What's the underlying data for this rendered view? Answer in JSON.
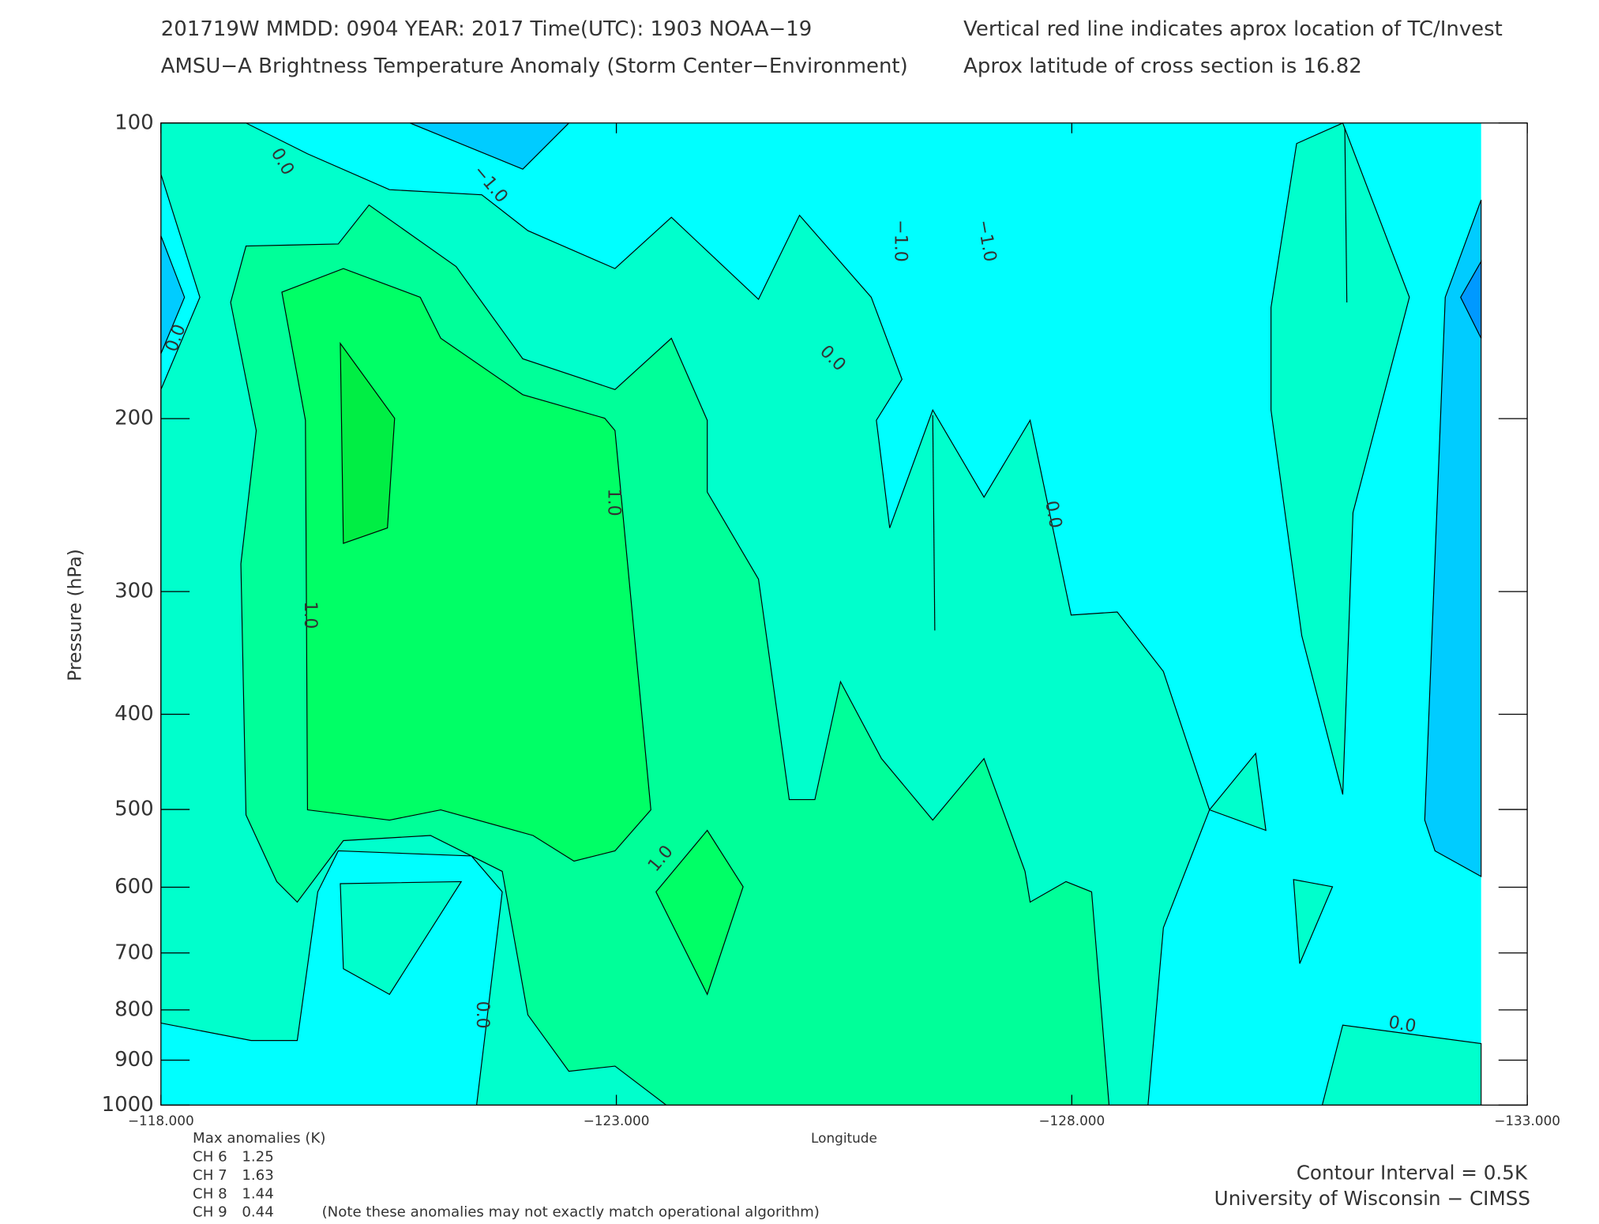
{
  "chart_data": {
    "type": "contour",
    "title_lines": [
      "201719W  MMDD: 0904 YEAR: 2017 Time(UTC): 1903 NOAA−19",
      "AMSU−A Brightness Temperature Anomaly (Storm Center−Environment)"
    ],
    "notes": [
      "Vertical red line indicates aprox location of TC/Invest",
      "Aprox latitude of cross section is 16.82"
    ],
    "x_label": "Longitude",
    "y_label": "Pressure (hPa)",
    "xlim": [
      -118,
      -133
    ],
    "xticks": [
      {
        "value": -118,
        "label": "−118.000"
      },
      {
        "value": -123,
        "label": "−123.000"
      },
      {
        "value": -128,
        "label": "−128.000"
      },
      {
        "value": -133,
        "label": "−133.000"
      }
    ],
    "ylim": [
      1000,
      100
    ],
    "yticks": [
      100,
      200,
      300,
      400,
      500,
      600,
      700,
      800,
      900,
      1000
    ],
    "log_scale_y": true,
    "contour_labels": [
      "0.0",
      "−1.0",
      "0.0",
      "−1.0",
      "−1.0",
      "0.0",
      "1.0",
      "0.0",
      "1.0",
      "1.0",
      "0.0",
      "0.0"
    ],
    "max_anomalies_title": "Max anomalies (K)",
    "max_anomalies": [
      {
        "channel": "CH 6",
        "value": "1.25"
      },
      {
        "channel": "CH 7",
        "value": "1.63"
      },
      {
        "channel": "CH 8",
        "value": "1.44"
      },
      {
        "channel": "CH 9",
        "value": "0.44"
      }
    ],
    "disclaimer": "(Note these anomalies may not exactly match operational algorithm)",
    "contour_interval": "Contour Interval = 0.5K",
    "credit": "University of Wisconsin − CIMSS"
  }
}
